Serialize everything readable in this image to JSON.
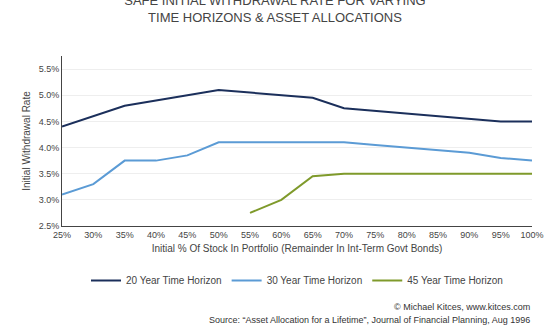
{
  "chart_data": {
    "type": "line",
    "title": "SAFE INITIAL WITHDRAWAL RATE FOR VARYING\nTIME HORIZONS & ASSET ALLOCATIONS",
    "xlabel": "Initial % Of Stock In Portfolio (Remainder In Int-Term Govt Bonds)",
    "ylabel": "Initial Withdrawal Rate",
    "categories": [
      "25%",
      "30%",
      "35%",
      "40%",
      "45%",
      "50%",
      "55%",
      "60%",
      "65%",
      "70%",
      "75%",
      "80%",
      "85%",
      "90%",
      "95%",
      "100%"
    ],
    "series": [
      {
        "name": "20 Year Time Horizon",
        "color": "#1b2f5b",
        "values": [
          4.4,
          4.6,
          4.8,
          4.9,
          5.0,
          5.1,
          5.05,
          5.0,
          4.95,
          4.75,
          4.7,
          4.65,
          4.6,
          4.55,
          4.5,
          4.5
        ]
      },
      {
        "name": "30 Year Time Horizon",
        "color": "#5b9bd5",
        "values": [
          3.1,
          3.3,
          3.75,
          3.75,
          3.85,
          4.1,
          4.1,
          4.1,
          4.1,
          4.1,
          4.05,
          4.0,
          3.95,
          3.9,
          3.8,
          3.75
        ]
      },
      {
        "name": "45 Year Time Horizon",
        "color": "#7f9a2b",
        "values": [
          null,
          null,
          null,
          null,
          null,
          null,
          2.75,
          3.0,
          3.45,
          3.5,
          3.5,
          3.5,
          3.5,
          3.5,
          3.5,
          3.5
        ]
      }
    ],
    "ylim": [
      2.5,
      5.75
    ],
    "yticks": [
      {
        "value": 2.5,
        "label": "2.5%"
      },
      {
        "value": 3.0,
        "label": "3.0%"
      },
      {
        "value": 3.5,
        "label": "3.5%"
      },
      {
        "value": 4.0,
        "label": "4.0%"
      },
      {
        "value": 4.5,
        "label": "4.5%"
      },
      {
        "value": 5.0,
        "label": "5.0%"
      },
      {
        "value": 5.5,
        "label": "5.5%"
      }
    ],
    "grid": true,
    "legend": "bottom",
    "annotations": [
      "© Michael Kitces, www.kitces.com",
      "Source: “Asset Allocation for a Lifetime”, Journal of Financial Planning, Aug 1996"
    ]
  }
}
